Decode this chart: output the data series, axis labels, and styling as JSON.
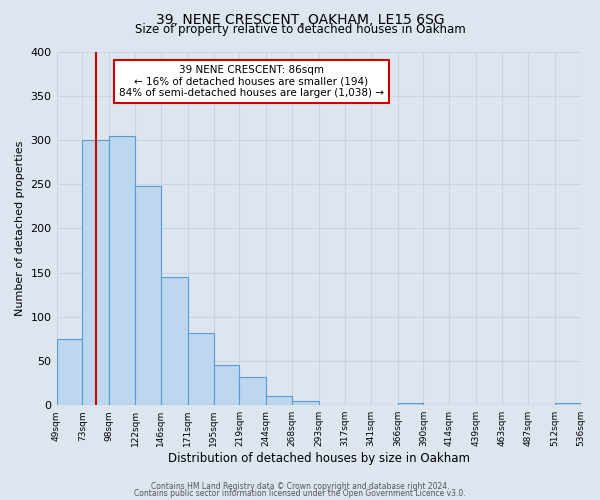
{
  "title": "39, NENE CRESCENT, OAKHAM, LE15 6SG",
  "subtitle": "Size of property relative to detached houses in Oakham",
  "xlabel": "Distribution of detached houses by size in Oakham",
  "ylabel": "Number of detached properties",
  "bar_edges": [
    49,
    73,
    98,
    122,
    146,
    171,
    195,
    219,
    244,
    268,
    293,
    317,
    341,
    366,
    390,
    414,
    439,
    463,
    487,
    512,
    536
  ],
  "bar_heights": [
    75,
    300,
    305,
    248,
    145,
    82,
    45,
    32,
    10,
    5,
    0,
    0,
    0,
    2,
    0,
    0,
    0,
    0,
    0,
    2
  ],
  "bar_color": "#BDD7EE",
  "bar_edge_color": "#5B9BD5",
  "vline_x": 86,
  "vline_color": "#CC0000",
  "annotation_text_line1": "39 NENE CRESCENT: 86sqm",
  "annotation_text_line2": "← 16% of detached houses are smaller (194)",
  "annotation_text_line3": "84% of semi-detached houses are larger (1,038) →",
  "xlim_left": 49,
  "xlim_right": 536,
  "ylim_top": 400,
  "yticks": [
    0,
    50,
    100,
    150,
    200,
    250,
    300,
    350,
    400
  ],
  "x_tick_labels": [
    "49sqm",
    "73sqm",
    "98sqm",
    "122sqm",
    "146sqm",
    "171sqm",
    "195sqm",
    "219sqm",
    "244sqm",
    "268sqm",
    "293sqm",
    "317sqm",
    "341sqm",
    "366sqm",
    "390sqm",
    "414sqm",
    "439sqm",
    "463sqm",
    "487sqm",
    "512sqm",
    "536sqm"
  ],
  "grid_color": "#C8D4E0",
  "bg_color": "#DDE6EF",
  "footnote1": "Contains HM Land Registry data © Crown copyright and database right 2024.",
  "footnote2": "Contains public sector information licensed under the Open Government Licence v3.0."
}
